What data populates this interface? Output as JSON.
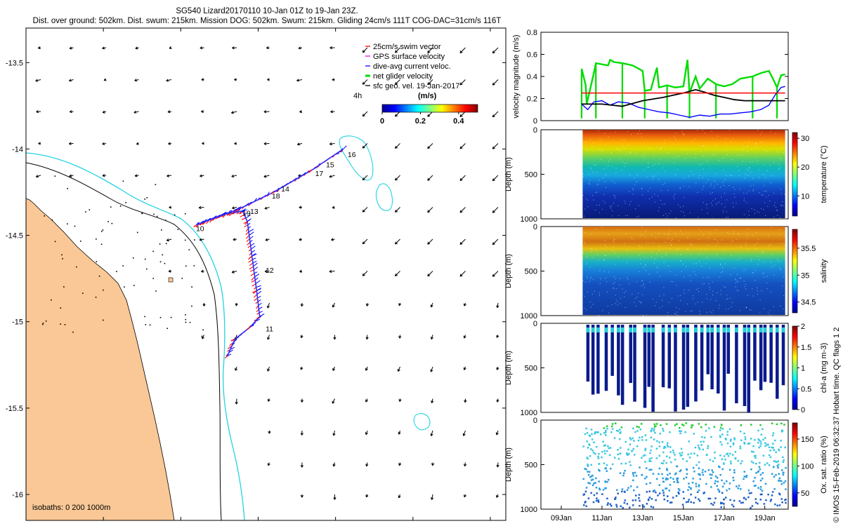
{
  "header": {
    "title_line1": "SG540 Lizard20170110 10-Jan 01Z to 19-Jan 23Z.",
    "title_line2": "Dist. over ground: 502km. Dist. swum: 215km. Mission DOG: 502km. Swum: 215km. Gliding 24cm/s 111T COG-DAC=31cm/s 116T"
  },
  "side_label": "© IMOS 15-Feb-2019 06:32:37 Hobart time. QC flags 1  2",
  "colors": {
    "land": "#F9C896",
    "isobath_200": "#000000",
    "isobath_1000": "#22D3E3",
    "swim_vector": "#FF0000",
    "gps_velocity": "#FF00FF",
    "dac_velocity": "#0000FF",
    "net_velocity": "#00DD00",
    "sfc_geo": "#000000"
  },
  "chart_data": [
    {
      "type": "map",
      "title": "Glider track with surface geostrophic velocity",
      "x_ticks": [
        145,
        145.5,
        146,
        146.5,
        147,
        147.5
      ],
      "y_ticks": [
        -13.5,
        -14,
        -14.5,
        -15,
        -15.5,
        -16
      ],
      "xlim": [
        144.5,
        147.6
      ],
      "ylim": [
        -16.15,
        -13.3
      ],
      "legend": [
        {
          "label": "25cm/s swim vector",
          "color": "#FF0000"
        },
        {
          "label": "GPS surface velocity",
          "color": "#FF00FF"
        },
        {
          "label": "dive-avg current veloc.",
          "color": "#0000FF"
        },
        {
          "label": "net glider velocity",
          "color": "#00DD00"
        },
        {
          "label": "sfc geo. vel. 19-Jan-2017",
          "color": "#000000"
        }
      ],
      "colorbar": {
        "label": "(m/s)",
        "ticks": [
          0,
          0.2,
          0.4
        ],
        "range": [
          0,
          0.5
        ],
        "note": "4h"
      },
      "isobath_label": "isobaths: 0   200  1000m",
      "track": [
        [
          145.8,
          -15.2
        ],
        [
          145.85,
          -15.1
        ],
        [
          145.95,
          -15.03
        ],
        [
          146.01,
          -14.97
        ],
        [
          145.99,
          -14.82
        ],
        [
          145.96,
          -14.62
        ],
        [
          145.93,
          -14.42
        ],
        [
          145.9,
          -14.36
        ],
        [
          145.77,
          -14.38
        ],
        [
          145.6,
          -14.44
        ],
        [
          145.87,
          -14.35
        ],
        [
          146.1,
          -14.25
        ],
        [
          146.35,
          -14.12
        ],
        [
          146.55,
          -14.0
        ]
      ],
      "day_labels": [
        {
          "text": "10",
          "lon": 145.58,
          "lat": -14.46
        },
        {
          "text": "11",
          "lon": 146.03,
          "lat": -15.04
        },
        {
          "text": "12",
          "lon": 146.03,
          "lat": -14.7
        },
        {
          "text": "13",
          "lon": 145.93,
          "lat": -14.36
        },
        {
          "text": "14",
          "lon": 146.13,
          "lat": -14.23
        },
        {
          "text": "15",
          "lon": 146.42,
          "lat": -14.09
        },
        {
          "text": "16",
          "lon": 146.56,
          "lat": -14.03
        },
        {
          "text": "17",
          "lon": 146.35,
          "lat": -14.14
        },
        {
          "text": "18",
          "lon": 146.07,
          "lat": -14.27
        },
        {
          "text": "19",
          "lon": 145.88,
          "lat": -14.37
        }
      ]
    },
    {
      "type": "line",
      "ylabel": "velocity magnitude (m/s)",
      "ylim": [
        0,
        0.8
      ],
      "y_ticks": [
        0,
        0.2,
        0.4,
        0.6,
        0.8
      ],
      "xlim": [
        8.0,
        20.15
      ],
      "series": [
        {
          "name": "net glider velocity",
          "color": "#00DD00",
          "x": [
            10.0,
            10.2,
            10.25,
            10.6,
            10.7,
            11.3,
            11.4,
            11.6,
            12.0,
            12.5,
            12.8,
            13.0,
            13.1,
            13.4,
            13.7,
            13.8,
            14.2,
            14.6,
            15.0,
            15.2,
            15.3,
            15.6,
            15.8,
            16.2,
            16.6,
            17.0,
            17.4,
            17.8,
            18.4,
            18.8,
            19.2,
            19.4,
            19.6,
            19.8,
            20.0
          ],
          "y": [
            0.47,
            0.32,
            0.15,
            0.43,
            0.52,
            0.5,
            0.55,
            0.53,
            0.52,
            0.5,
            0.47,
            0.45,
            0.27,
            0.28,
            0.48,
            0.3,
            0.32,
            0.3,
            0.31,
            0.55,
            0.25,
            0.4,
            0.29,
            0.38,
            0.33,
            0.31,
            0.33,
            0.38,
            0.4,
            0.43,
            0.45,
            0.38,
            0.3,
            0.41,
            0.42
          ]
        },
        {
          "name": "dive-avg current veloc.",
          "color": "#0000FF",
          "x": [
            10.0,
            10.3,
            10.6,
            11.0,
            11.4,
            11.8,
            12.3,
            12.8,
            13.3,
            13.8,
            14.3,
            14.8,
            15.3,
            15.8,
            16.3,
            16.8,
            17.3,
            17.8,
            18.3,
            18.8,
            19.2,
            19.5,
            19.8,
            20.0
          ],
          "y": [
            0.15,
            0.1,
            0.17,
            0.18,
            0.14,
            0.17,
            0.16,
            0.12,
            0.1,
            0.08,
            0.07,
            0.05,
            0.03,
            0.05,
            0.04,
            0.06,
            0.06,
            0.07,
            0.08,
            0.1,
            0.14,
            0.23,
            0.3,
            0.31
          ]
        },
        {
          "name": "sfc geo. vel.",
          "color": "#000000",
          "x": [
            10.0,
            11.0,
            12.0,
            13.0,
            14.0,
            15.0,
            15.6,
            16.0,
            16.5,
            17.0,
            17.5,
            18.0,
            18.5,
            19.0,
            19.5,
            20.0
          ],
          "y": [
            0.15,
            0.15,
            0.13,
            0.18,
            0.21,
            0.25,
            0.28,
            0.26,
            0.23,
            0.21,
            0.19,
            0.18,
            0.18,
            0.18,
            0.18,
            0.18
          ]
        },
        {
          "name": "25cm/s swim vector",
          "color": "#FF0000",
          "x": [
            10.0,
            20.0
          ],
          "y": [
            0.25,
            0.25
          ]
        }
      ]
    },
    {
      "type": "heatmap",
      "name": "temperature",
      "ylabel": "Depth (m)",
      "ylim": [
        1000,
        0
      ],
      "y_ticks": [
        0,
        500,
        1000
      ],
      "colorbar_label": "temperature (°C)",
      "cbar_range": [
        3,
        32
      ],
      "cbar_ticks": [
        10,
        20,
        30
      ]
    },
    {
      "type": "heatmap",
      "name": "salinity",
      "ylabel": "Depth (m)",
      "ylim": [
        1000,
        0
      ],
      "y_ticks": [
        0,
        500,
        1000
      ],
      "colorbar_label": "salinity",
      "cbar_range": [
        34.3,
        35.85
      ],
      "cbar_ticks": [
        34.5,
        35,
        35.5
      ]
    },
    {
      "type": "heatmap",
      "name": "chl-a",
      "ylabel": "Depth (m)",
      "ylim": [
        1000,
        0
      ],
      "y_ticks": [
        0,
        500,
        1000
      ],
      "colorbar_label": "chl-a (mg m-3)",
      "cbar_range": [
        0,
        2
      ],
      "cbar_ticks": [
        0,
        0.5,
        1,
        1.5,
        2
      ]
    },
    {
      "type": "heatmap",
      "name": "oxygen",
      "ylabel": "Depth (m)",
      "ylim": [
        1000,
        0
      ],
      "y_ticks": [
        0,
        500,
        1000
      ],
      "colorbar_label": "Ox. sat. ratio (%)",
      "cbar_range": [
        25,
        180
      ],
      "cbar_ticks": [
        50,
        100,
        150
      ]
    },
    {
      "type": "axis",
      "x_ticks": [
        {
          "v": 9.0,
          "label": "09Jan"
        },
        {
          "v": 11.0,
          "label": "11Jan"
        },
        {
          "v": 13.0,
          "label": "13Jan"
        },
        {
          "v": 15.0,
          "label": "15Jan"
        },
        {
          "v": 17.0,
          "label": "17Jan"
        },
        {
          "v": 19.0,
          "label": "19Jan"
        }
      ]
    }
  ]
}
